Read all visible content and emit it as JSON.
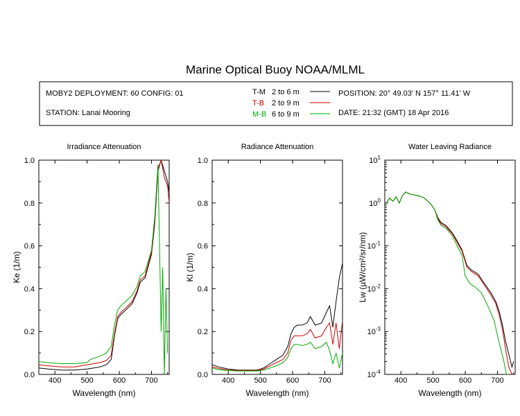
{
  "title": "Marine Optical Buoy NOAA/MLML",
  "info": {
    "deployment": "MOBY2 DEPLOYMENT: 60 CONFIG: 01",
    "station": "STATION: Lanai Mooring",
    "position": "POSITION: 20° 49.03' N   157° 11.41' W",
    "date": "DATE: 21:32 (GMT) 18 Apr 2016",
    "legend": [
      {
        "code": "T-M",
        "range": "2 to 6  m",
        "color": "#000000"
      },
      {
        "code": "T-B",
        "range": "2 to 9  m",
        "color": "#cc0000"
      },
      {
        "code": "M-B",
        "range": "6 to 9  m",
        "color": "#00aa00"
      }
    ]
  },
  "chart_data": [
    {
      "type": "line",
      "title": "Irradiance Attenuation",
      "xlabel": "Wavelength (nm)",
      "ylabel": "Ke  (1/m)",
      "xlim": [
        350,
        755
      ],
      "ylim": [
        0,
        1.0
      ],
      "xticks": [
        400,
        500,
        600,
        700
      ],
      "yticks": [
        "0.0",
        "0.2",
        "0.4",
        "0.6",
        "0.8",
        "1.0"
      ],
      "yvals": [
        0,
        0.2,
        0.4,
        0.6,
        0.8,
        1.0
      ],
      "series": [
        {
          "color": "#000000",
          "x": [
            350,
            380,
            420,
            460,
            500,
            520,
            540,
            560,
            575,
            585,
            595,
            605,
            620,
            640,
            655,
            665,
            680,
            700,
            710,
            720,
            730,
            740,
            750,
            755
          ],
          "y": [
            0.03,
            0.025,
            0.02,
            0.02,
            0.025,
            0.03,
            0.035,
            0.045,
            0.07,
            0.18,
            0.26,
            0.28,
            0.3,
            0.33,
            0.38,
            0.43,
            0.45,
            0.56,
            0.7,
            0.95,
            1.0,
            0.95,
            0.9,
            0.85
          ]
        },
        {
          "color": "#cc0000",
          "x": [
            350,
            380,
            420,
            460,
            500,
            520,
            540,
            560,
            575,
            585,
            595,
            605,
            620,
            640,
            655,
            665,
            680,
            700,
            710,
            720,
            730,
            740,
            750,
            755
          ],
          "y": [
            0.045,
            0.04,
            0.035,
            0.035,
            0.045,
            0.05,
            0.055,
            0.065,
            0.09,
            0.19,
            0.27,
            0.29,
            0.31,
            0.34,
            0.39,
            0.44,
            0.46,
            0.57,
            0.72,
            0.96,
            1.0,
            0.92,
            0.88,
            0.8
          ]
        },
        {
          "color": "#00aa00",
          "x": [
            350,
            380,
            420,
            460,
            500,
            510,
            520,
            540,
            560,
            575,
            585,
            595,
            605,
            620,
            640,
            655,
            665,
            680,
            700,
            710,
            720,
            725,
            730,
            735,
            740,
            745,
            750
          ],
          "y": [
            0.06,
            0.055,
            0.05,
            0.05,
            0.055,
            0.07,
            0.075,
            0.085,
            0.1,
            0.13,
            0.23,
            0.3,
            0.32,
            0.34,
            0.37,
            0.41,
            0.46,
            0.48,
            0.58,
            0.73,
            0.98,
            0.6,
            0.2,
            0.5,
            0.0,
            0.4,
            0.1
          ]
        }
      ]
    },
    {
      "type": "line",
      "title": "Radiance Attenuation",
      "xlabel": "Wavelength (nm)",
      "ylabel": "Kl  (1/m)",
      "xlim": [
        350,
        755
      ],
      "ylim": [
        0,
        1.0
      ],
      "xticks": [
        400,
        500,
        600,
        700
      ],
      "yticks": [
        "0.0",
        "0.2",
        "0.4",
        "0.6",
        "0.8",
        "1.0"
      ],
      "yvals": [
        0,
        0.2,
        0.4,
        0.6,
        0.8,
        1.0
      ],
      "series": [
        {
          "color": "#000000",
          "x": [
            350,
            370,
            400,
            430,
            460,
            490,
            510,
            530,
            550,
            570,
            585,
            595,
            605,
            615,
            630,
            645,
            655,
            670,
            690,
            705,
            715,
            725,
            735,
            745,
            755
          ],
          "y": [
            0.045,
            0.035,
            0.025,
            0.02,
            0.02,
            0.02,
            0.03,
            0.05,
            0.07,
            0.09,
            0.13,
            0.19,
            0.22,
            0.23,
            0.23,
            0.24,
            0.27,
            0.23,
            0.24,
            0.29,
            0.32,
            0.22,
            0.34,
            0.45,
            0.52
          ]
        },
        {
          "color": "#cc0000",
          "x": [
            350,
            370,
            400,
            430,
            460,
            490,
            510,
            530,
            550,
            570,
            585,
            595,
            605,
            615,
            630,
            645,
            655,
            670,
            690,
            705,
            715,
            725,
            735,
            745,
            755
          ],
          "y": [
            0.035,
            0.028,
            0.02,
            0.018,
            0.018,
            0.018,
            0.025,
            0.04,
            0.055,
            0.07,
            0.1,
            0.16,
            0.18,
            0.18,
            0.18,
            0.19,
            0.21,
            0.17,
            0.18,
            0.22,
            0.24,
            0.14,
            0.24,
            0.12,
            0.25
          ]
        },
        {
          "color": "#00aa00",
          "x": [
            350,
            370,
            400,
            430,
            460,
            490,
            510,
            530,
            550,
            570,
            585,
            595,
            605,
            615,
            630,
            645,
            655,
            670,
            690,
            705,
            715,
            725,
            735,
            745,
            755
          ],
          "y": [
            0.03,
            0.022,
            0.018,
            0.016,
            0.016,
            0.016,
            0.02,
            0.03,
            0.04,
            0.055,
            0.08,
            0.12,
            0.14,
            0.14,
            0.135,
            0.14,
            0.15,
            0.12,
            0.13,
            0.15,
            0.11,
            0.05,
            0.1,
            0.03,
            0.1
          ]
        }
      ]
    },
    {
      "type": "line",
      "title": "Water Leaving Radiance",
      "xlabel": "Wavelength (nm)",
      "ylabel": "Lw  (µW/cm²/sr/nm)",
      "scale": "log",
      "xlim": [
        350,
        755
      ],
      "ylim": [
        0.0001,
        10
      ],
      "xticks": [
        400,
        500,
        600,
        700
      ],
      "ytick_exponents": [
        1,
        0,
        -1,
        -2,
        -3,
        -4
      ],
      "series": [
        {
          "color": "#000000",
          "x": [
            355,
            365,
            375,
            385,
            395,
            405,
            415,
            430,
            450,
            470,
            490,
            505,
            515,
            525,
            540,
            560,
            575,
            590,
            605,
            620,
            640,
            660,
            680,
            695,
            705,
            715,
            725,
            735,
            745,
            750
          ],
          "y": [
            1.0,
            1.3,
            1.1,
            1.4,
            1.0,
            1.5,
            1.8,
            1.6,
            1.5,
            1.35,
            1.0,
            0.7,
            0.45,
            0.35,
            0.3,
            0.2,
            0.13,
            0.08,
            0.035,
            0.027,
            0.022,
            0.013,
            0.008,
            0.005,
            0.003,
            0.0015,
            0.0006,
            0.0003,
            0.00015,
            0.0002
          ]
        },
        {
          "color": "#cc0000",
          "x": [
            355,
            365,
            375,
            385,
            395,
            405,
            415,
            430,
            450,
            470,
            490,
            505,
            515,
            525,
            540,
            560,
            575,
            590,
            605,
            620,
            640,
            660,
            680,
            695,
            705,
            715,
            725,
            735,
            745
          ],
          "y": [
            1.0,
            1.3,
            1.1,
            1.4,
            1.0,
            1.5,
            1.8,
            1.6,
            1.5,
            1.35,
            1.0,
            0.7,
            0.42,
            0.33,
            0.28,
            0.19,
            0.12,
            0.075,
            0.032,
            0.025,
            0.02,
            0.012,
            0.007,
            0.0045,
            0.0025,
            0.0012,
            0.0004,
            0.00015,
            0.0001
          ]
        },
        {
          "color": "#00aa00",
          "x": [
            355,
            365,
            375,
            385,
            395,
            405,
            415,
            430,
            450,
            470,
            490,
            505,
            515,
            525,
            540,
            560,
            575,
            590,
            600,
            615,
            630,
            650,
            670,
            690,
            700,
            710,
            720,
            728,
            735
          ],
          "y": [
            1.0,
            1.3,
            1.1,
            1.4,
            1.0,
            1.5,
            1.8,
            1.6,
            1.5,
            1.35,
            1.0,
            0.7,
            0.4,
            0.3,
            0.26,
            0.17,
            0.1,
            0.06,
            0.02,
            0.013,
            0.011,
            0.008,
            0.004,
            0.0018,
            0.0008,
            0.0004,
            0.0002,
            0.0001,
            0.0001
          ]
        }
      ]
    }
  ]
}
